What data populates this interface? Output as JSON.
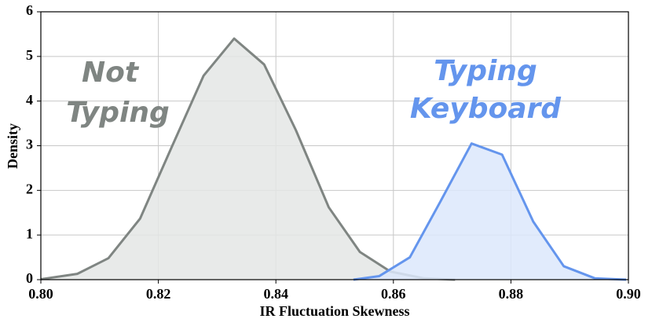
{
  "chart_data": {
    "type": "area",
    "xlabel": "IR Fluctuation Skewness",
    "ylabel": "Density",
    "xlim": [
      0.8,
      0.9
    ],
    "ylim": [
      0,
      6
    ],
    "xticks": [
      {
        "value": 0.8,
        "label": "0.80"
      },
      {
        "value": 0.82,
        "label": "0.82"
      },
      {
        "value": 0.84,
        "label": "0.84"
      },
      {
        "value": 0.86,
        "label": "0.86"
      },
      {
        "value": 0.88,
        "label": "0.88"
      },
      {
        "value": 0.9,
        "label": "0.90"
      }
    ],
    "yticks": [
      0,
      1,
      2,
      3,
      4,
      5,
      6
    ],
    "grid": true,
    "series": [
      {
        "color": "#7f8582",
        "fill": "#e4e6e5",
        "x": [
          0.8,
          0.8062,
          0.8115,
          0.8169,
          0.8222,
          0.8277,
          0.8329,
          0.838,
          0.8434,
          0.849,
          0.8543,
          0.8595,
          0.8652,
          0.8705
        ],
        "values": [
          0.01,
          0.13,
          0.48,
          1.37,
          2.95,
          4.57,
          5.4,
          4.82,
          3.35,
          1.62,
          0.62,
          0.18,
          0.03,
          0.0
        ]
      },
      {
        "color": "#6495ed",
        "fill": "#dce8fb",
        "x": [
          0.8532,
          0.8576,
          0.8628,
          0.868,
          0.8733,
          0.8785,
          0.8838,
          0.889,
          0.8943,
          0.8996
        ],
        "values": [
          0.0,
          0.08,
          0.5,
          1.75,
          3.05,
          2.8,
          1.3,
          0.3,
          0.03,
          0.0
        ]
      }
    ],
    "annotations": [
      {
        "text": "Not",
        "color": "#7f8582"
      },
      {
        "text": "Typing",
        "color": "#7f8582"
      },
      {
        "text": "Typing",
        "color": "#6495ed"
      },
      {
        "text": "Keyboard",
        "color": "#6495ed"
      }
    ]
  }
}
